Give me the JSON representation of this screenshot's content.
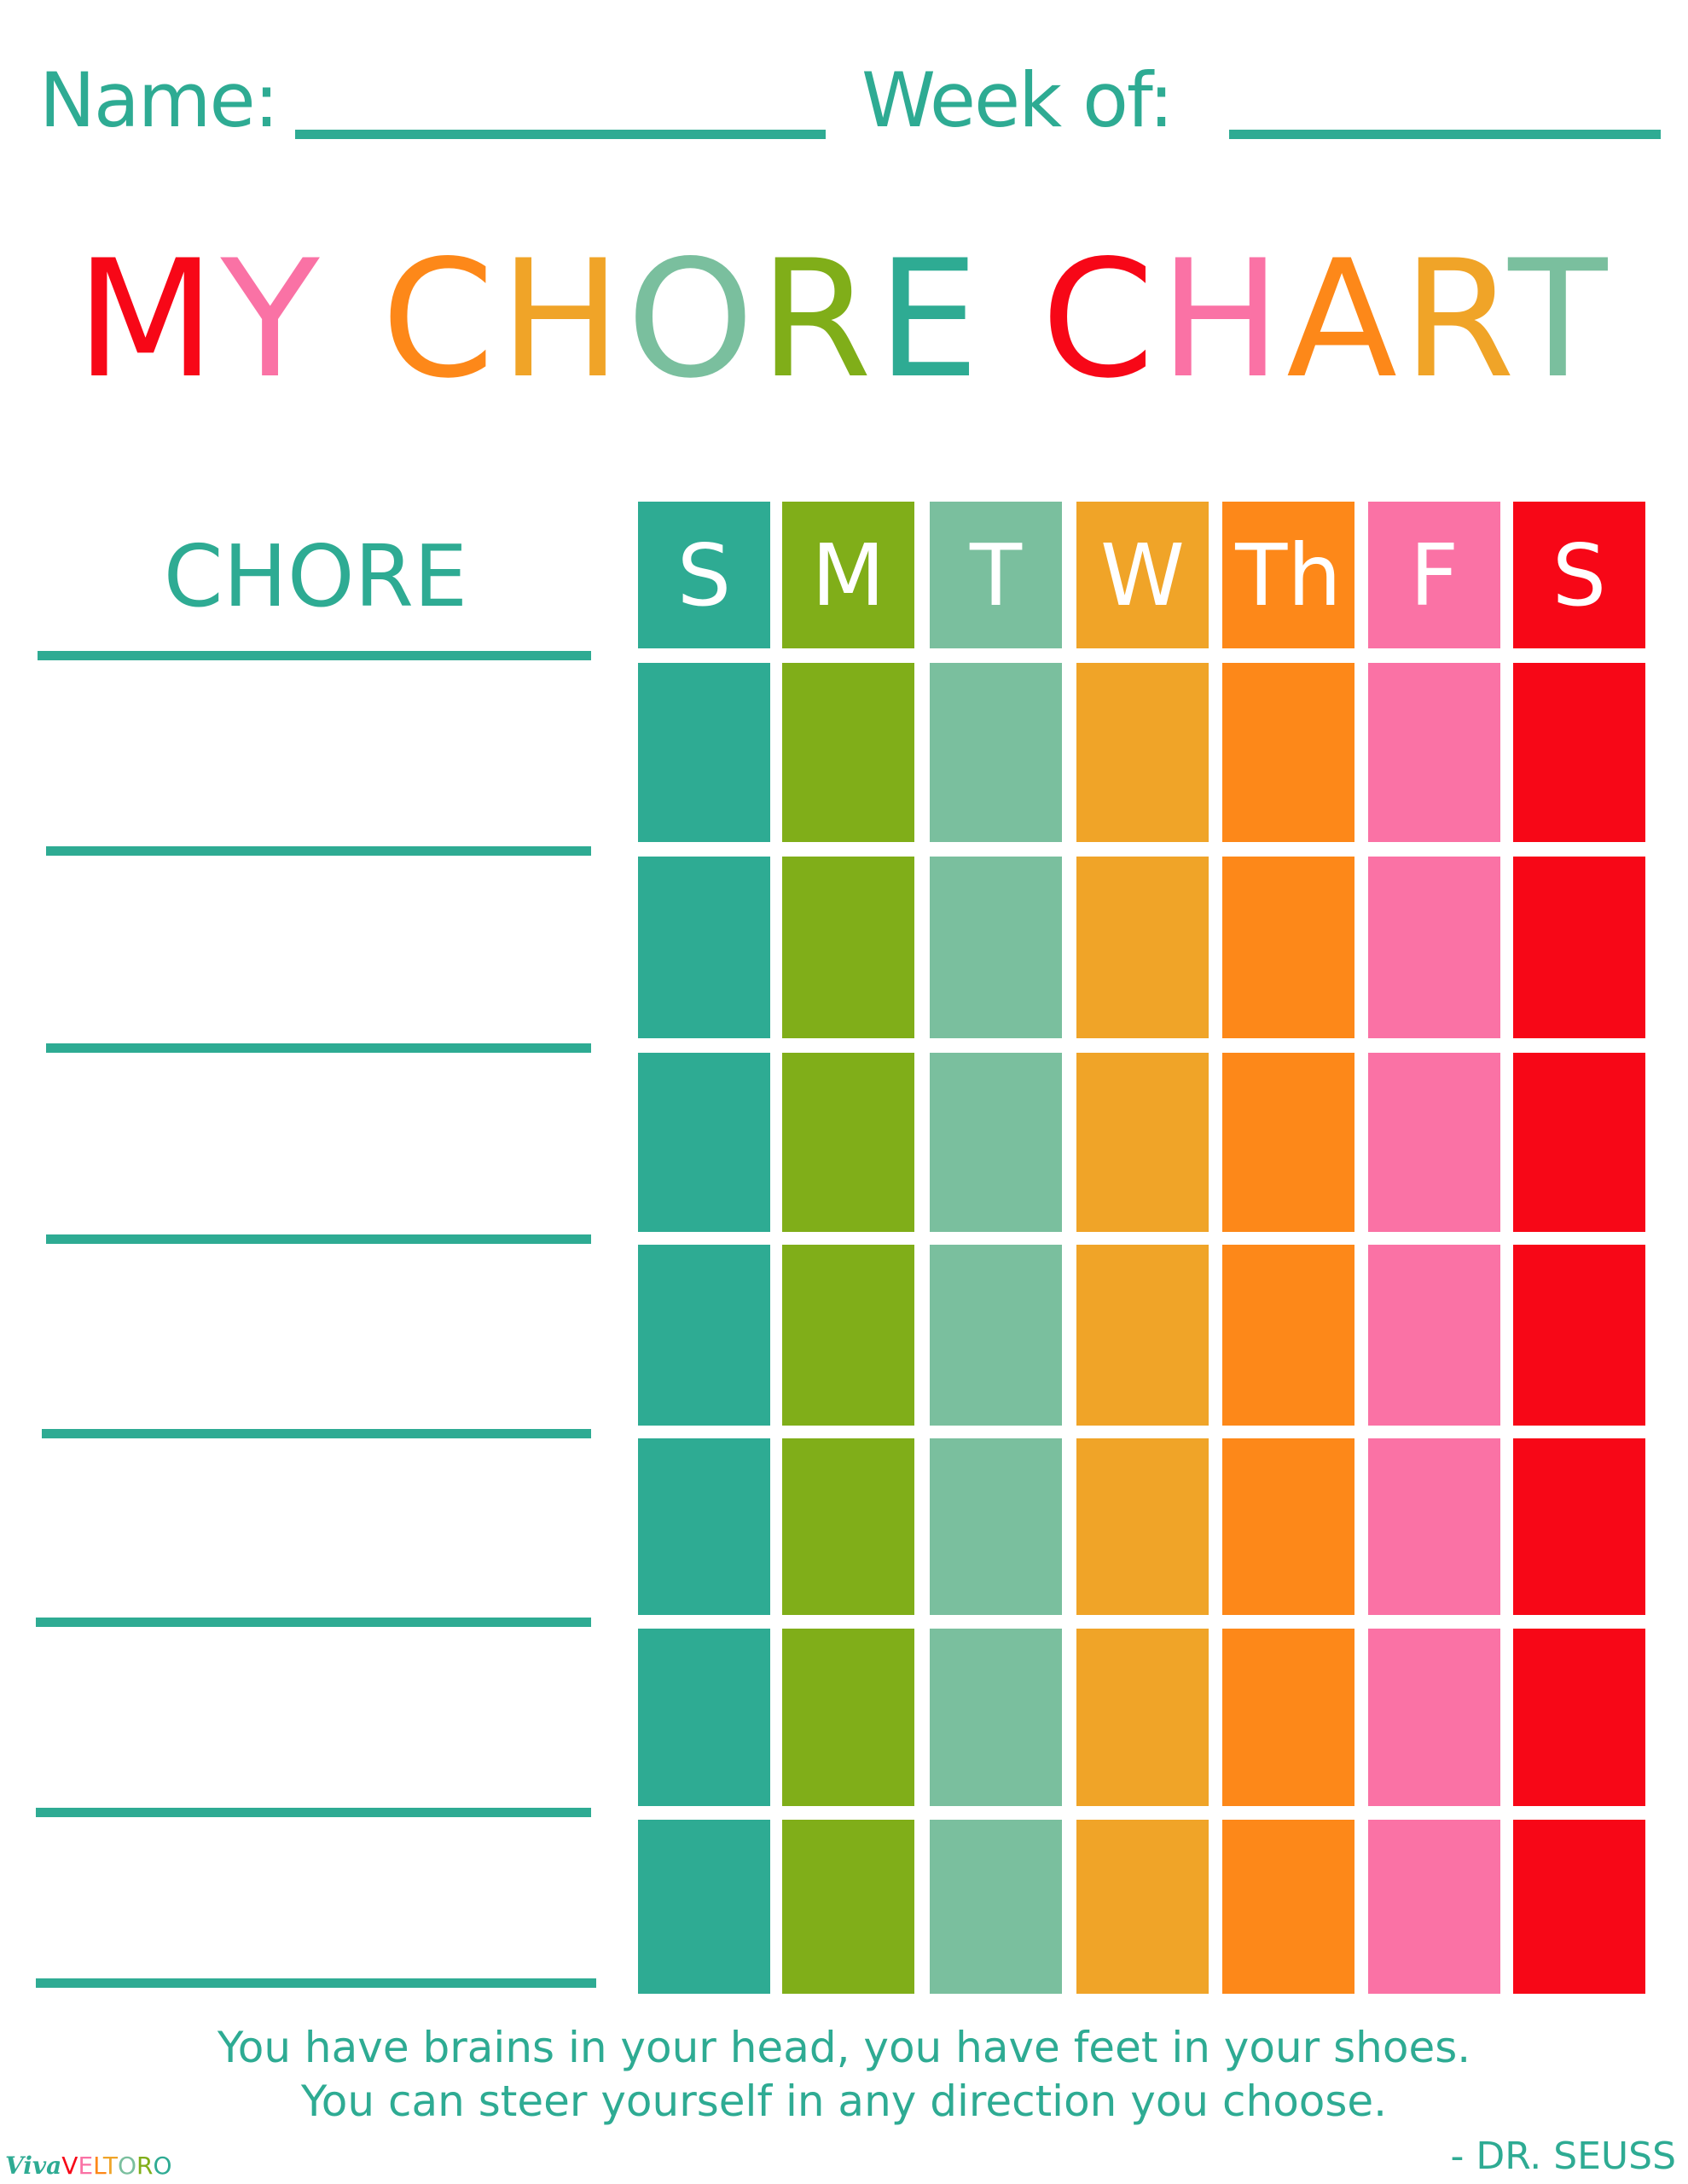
{
  "header": {
    "name_label": "Name:",
    "week_label": "Week of:"
  },
  "title": {
    "letters": [
      {
        "ch": "M",
        "color": "#f70717"
      },
      {
        "ch": "Y",
        "color": "#fa72a5"
      },
      {
        "ch": " ",
        "color": "#fff"
      },
      {
        "ch": "C",
        "color": "#fd8819"
      },
      {
        "ch": "H",
        "color": "#f0a428"
      },
      {
        "ch": "O",
        "color": "#7abf9e"
      },
      {
        "ch": "R",
        "color": "#80ae19"
      },
      {
        "ch": "E",
        "color": "#2eab93"
      },
      {
        "ch": " ",
        "color": "#fff"
      },
      {
        "ch": "C",
        "color": "#f70717"
      },
      {
        "ch": "H",
        "color": "#fa72a5"
      },
      {
        "ch": "A",
        "color": "#fd8819"
      },
      {
        "ch": "R",
        "color": "#f0a428"
      },
      {
        "ch": "T",
        "color": "#7abf9e"
      }
    ],
    "text": "MY CHORE CHART"
  },
  "table": {
    "chore_header": "CHORE",
    "days": [
      {
        "label": "S",
        "color": "#2eab93"
      },
      {
        "label": "M",
        "color": "#80ae19"
      },
      {
        "label": "T",
        "color": "#7abf9e"
      },
      {
        "label": "W",
        "color": "#f0a428"
      },
      {
        "label": "Th",
        "color": "#fd8819"
      },
      {
        "label": "F",
        "color": "#fa72a5"
      },
      {
        "label": "S",
        "color": "#f70717"
      }
    ],
    "rows": 7
  },
  "footer": {
    "quote_line1": "You have brains in your head, you have feet in your shoes.",
    "quote_line2": "You can steer yourself in any direction you choose.",
    "attribution": "- DR. SEUSS",
    "logo_text": "VivaVELTORO"
  }
}
